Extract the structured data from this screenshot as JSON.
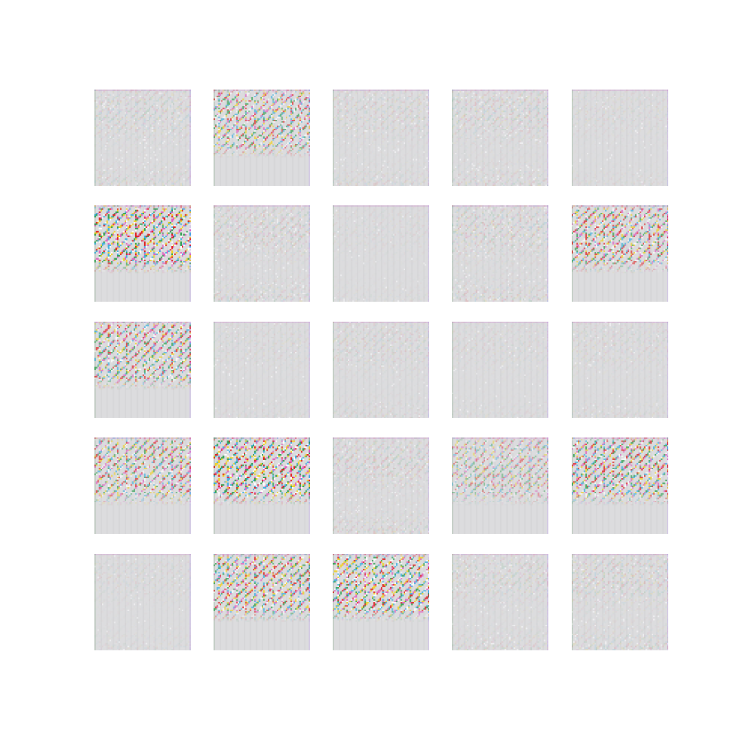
{
  "grid": {
    "rows": 5,
    "cols": 5,
    "tiles": [
      {
        "row": 1,
        "col": 1,
        "pattern": "faint",
        "intensity": 0.25
      },
      {
        "row": 1,
        "col": 2,
        "pattern": "houndstooth-top",
        "intensity": 0.7
      },
      {
        "row": 1,
        "col": 3,
        "pattern": "faint",
        "intensity": 0.2
      },
      {
        "row": 1,
        "col": 4,
        "pattern": "faint",
        "intensity": 0.25
      },
      {
        "row": 1,
        "col": 5,
        "pattern": "faint",
        "intensity": 0.12
      },
      {
        "row": 2,
        "col": 1,
        "pattern": "houndstooth-top",
        "intensity": 1.0
      },
      {
        "row": 2,
        "col": 2,
        "pattern": "faint",
        "intensity": 0.28
      },
      {
        "row": 2,
        "col": 3,
        "pattern": "faint",
        "intensity": 0.1
      },
      {
        "row": 2,
        "col": 4,
        "pattern": "faint",
        "intensity": 0.3
      },
      {
        "row": 2,
        "col": 5,
        "pattern": "houndstooth-top",
        "intensity": 0.75
      },
      {
        "row": 3,
        "col": 1,
        "pattern": "houndstooth-top",
        "intensity": 0.75
      },
      {
        "row": 3,
        "col": 2,
        "pattern": "faint",
        "intensity": 0.12
      },
      {
        "row": 3,
        "col": 3,
        "pattern": "faint",
        "intensity": 0.18
      },
      {
        "row": 3,
        "col": 4,
        "pattern": "faint",
        "intensity": 0.12
      },
      {
        "row": 3,
        "col": 5,
        "pattern": "faint",
        "intensity": 0.15
      },
      {
        "row": 4,
        "col": 1,
        "pattern": "houndstooth-top",
        "intensity": 0.7
      },
      {
        "row": 4,
        "col": 2,
        "pattern": "houndstooth-top",
        "intensity": 1.0
      },
      {
        "row": 4,
        "col": 3,
        "pattern": "faint",
        "intensity": 0.28
      },
      {
        "row": 4,
        "col": 4,
        "pattern": "houndstooth-top",
        "intensity": 0.45
      },
      {
        "row": 4,
        "col": 5,
        "pattern": "houndstooth-top",
        "intensity": 0.8
      },
      {
        "row": 5,
        "col": 1,
        "pattern": "faint",
        "intensity": 0.12
      },
      {
        "row": 5,
        "col": 2,
        "pattern": "houndstooth-top",
        "intensity": 0.8
      },
      {
        "row": 5,
        "col": 3,
        "pattern": "houndstooth-top",
        "intensity": 0.9
      },
      {
        "row": 5,
        "col": 4,
        "pattern": "faint",
        "intensity": 0.22
      },
      {
        "row": 5,
        "col": 5,
        "pattern": "faint",
        "intensity": 0.28
      }
    ]
  },
  "colors": {
    "background": "#ffffff",
    "tile_base": "#dcdcde",
    "pattern_palette": [
      "#e02020",
      "#f0d020",
      "#30a050",
      "#e060c0",
      "#40b0e0",
      "#ffffff"
    ]
  }
}
